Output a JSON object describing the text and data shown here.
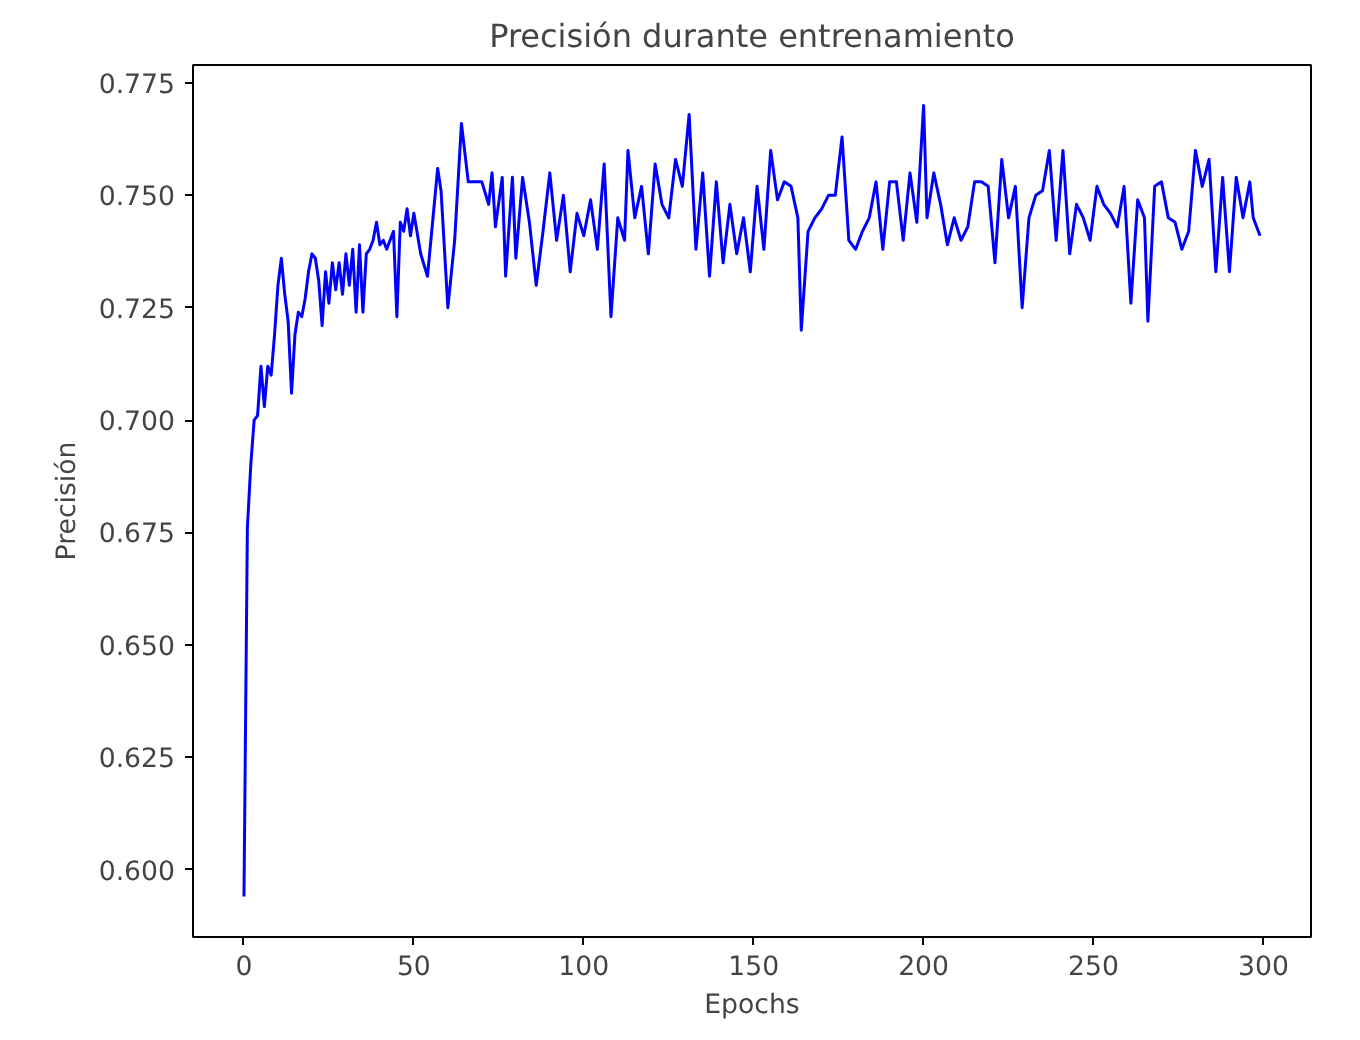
{
  "chart_data": {
    "type": "line",
    "title": "Precisión durante entrenamiento",
    "xlabel": "Epochs",
    "ylabel": "Precisión",
    "x": [
      0,
      1,
      2,
      3,
      4,
      5,
      6,
      7,
      8,
      9,
      10,
      11,
      12,
      13,
      14,
      15,
      16,
      17,
      18,
      19,
      20,
      21,
      22,
      23,
      24,
      25,
      26,
      27,
      28,
      29,
      30,
      31,
      32,
      33,
      34,
      35,
      36,
      37,
      38,
      39,
      40,
      41,
      42,
      43,
      44,
      45,
      46,
      47,
      48,
      49,
      50,
      52,
      54,
      56,
      57,
      58,
      60,
      62,
      64,
      66,
      70,
      72,
      73,
      74,
      76,
      77,
      79,
      80,
      82,
      84,
      86,
      88,
      90,
      92,
      94,
      96,
      98,
      100,
      102,
      104,
      106,
      108,
      110,
      112,
      113,
      115,
      117,
      119,
      121,
      123,
      125,
      127,
      129,
      131,
      133,
      135,
      137,
      139,
      141,
      143,
      145,
      147,
      149,
      151,
      153,
      155,
      157,
      159,
      161,
      163,
      164,
      166,
      168,
      170,
      172,
      174,
      176,
      178,
      180,
      182,
      184,
      186,
      188,
      190,
      192,
      194,
      196,
      198,
      199,
      200,
      201,
      203,
      205,
      207,
      209,
      211,
      213,
      215,
      217,
      219,
      221,
      223,
      225,
      227,
      229,
      231,
      233,
      235,
      237,
      239,
      241,
      243,
      245,
      247,
      249,
      251,
      253,
      255,
      257,
      259,
      261,
      263,
      265,
      266,
      268,
      270,
      272,
      274,
      276,
      278,
      280,
      282,
      284,
      286,
      288,
      290,
      292,
      294,
      296,
      297,
      299
    ],
    "series": [
      {
        "color": "#0000ff",
        "values": [
          0.594,
          0.676,
          0.69,
          0.7,
          0.701,
          0.712,
          0.703,
          0.712,
          0.71,
          0.719,
          0.73,
          0.736,
          0.728,
          0.722,
          0.706,
          0.719,
          0.724,
          0.723,
          0.727,
          0.733,
          0.737,
          0.736,
          0.731,
          0.721,
          0.733,
          0.726,
          0.735,
          0.729,
          0.735,
          0.728,
          0.737,
          0.73,
          0.738,
          0.724,
          0.739,
          0.724,
          0.737,
          0.738,
          0.74,
          0.744,
          0.739,
          0.74,
          0.738,
          0.74,
          0.742,
          0.723,
          0.744,
          0.742,
          0.747,
          0.741,
          0.746,
          0.737,
          0.732,
          0.748,
          0.756,
          0.751,
          0.725,
          0.74,
          0.766,
          0.753,
          0.753,
          0.748,
          0.755,
          0.743,
          0.754,
          0.732,
          0.754,
          0.736,
          0.754,
          0.744,
          0.73,
          0.742,
          0.755,
          0.74,
          0.75,
          0.733,
          0.746,
          0.741,
          0.749,
          0.738,
          0.757,
          0.723,
          0.745,
          0.74,
          0.76,
          0.745,
          0.752,
          0.737,
          0.757,
          0.748,
          0.745,
          0.758,
          0.752,
          0.768,
          0.738,
          0.755,
          0.732,
          0.753,
          0.735,
          0.748,
          0.737,
          0.745,
          0.733,
          0.752,
          0.738,
          0.76,
          0.749,
          0.753,
          0.752,
          0.745,
          0.72,
          0.742,
          0.745,
          0.747,
          0.75,
          0.75,
          0.763,
          0.74,
          0.738,
          0.742,
          0.745,
          0.753,
          0.738,
          0.753,
          0.753,
          0.74,
          0.755,
          0.744,
          0.757,
          0.77,
          0.745,
          0.755,
          0.748,
          0.739,
          0.745,
          0.74,
          0.743,
          0.753,
          0.753,
          0.752,
          0.735,
          0.758,
          0.745,
          0.752,
          0.725,
          0.745,
          0.75,
          0.751,
          0.76,
          0.74,
          0.76,
          0.737,
          0.748,
          0.745,
          0.74,
          0.752,
          0.748,
          0.746,
          0.743,
          0.752,
          0.726,
          0.749,
          0.745,
          0.722,
          0.752,
          0.753,
          0.745,
          0.744,
          0.738,
          0.742,
          0.76,
          0.752,
          0.758,
          0.733,
          0.754,
          0.733,
          0.754,
          0.745,
          0.753,
          0.745,
          0.741
        ]
      }
    ],
    "xlim": [
      -15,
      314
    ],
    "xticks": [
      0,
      50,
      100,
      150,
      200,
      250,
      300
    ],
    "ylim": [
      0.585,
      0.779
    ],
    "yticks": [
      {
        "value": 0.6,
        "label": "0.600"
      },
      {
        "value": 0.625,
        "label": "0.625"
      },
      {
        "value": 0.65,
        "label": "0.650"
      },
      {
        "value": 0.675,
        "label": "0.675"
      },
      {
        "value": 0.7,
        "label": "0.700"
      },
      {
        "value": 0.725,
        "label": "0.725"
      },
      {
        "value": 0.75,
        "label": "0.750"
      },
      {
        "value": 0.775,
        "label": "0.775"
      }
    ],
    "grid": false,
    "line_style": "solid"
  }
}
